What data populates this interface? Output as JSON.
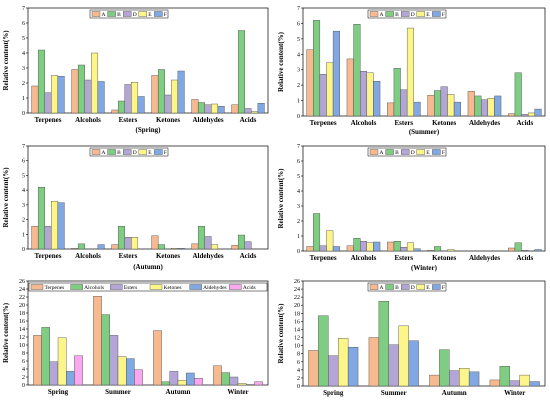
{
  "colors": {
    "A": "#f7b98f",
    "B": "#7fcd82",
    "D": "#b3a6d6",
    "E": "#fcf58a",
    "F": "#82a8e4",
    "Acids": "#f9a8f0"
  },
  "chart_data": [
    {
      "type": "bar",
      "subtitle": "(Spring)",
      "ylabel": "Relative content(%)",
      "ylim": [
        0,
        7
      ],
      "yticks": [
        0,
        1,
        2,
        3,
        4,
        5,
        6,
        7
      ],
      "categories": [
        "Terpenes",
        "Alcohols",
        "Esters",
        "Ketones",
        "Aldehydes",
        "Acids"
      ],
      "series": [
        {
          "name": "A",
          "values": [
            1.8,
            2.9,
            0.2,
            2.5,
            0.9,
            0.55
          ]
        },
        {
          "name": "B",
          "values": [
            4.2,
            3.2,
            0.8,
            2.9,
            0.7,
            5.5
          ]
        },
        {
          "name": "D",
          "values": [
            1.35,
            2.2,
            1.9,
            1.2,
            0.55,
            0.3
          ]
        },
        {
          "name": "E",
          "values": [
            2.5,
            4.0,
            2.05,
            2.2,
            0.6,
            0.1
          ]
        },
        {
          "name": "F",
          "values": [
            2.45,
            2.1,
            1.1,
            2.8,
            0.45,
            0.65
          ]
        }
      ]
    },
    {
      "type": "bar",
      "subtitle": "(Summer)",
      "ylabel": "Relative content(%)",
      "ylim": [
        0,
        7
      ],
      "yticks": [
        0,
        1,
        2,
        3,
        4,
        5,
        6,
        7
      ],
      "categories": [
        "Terpenes",
        "Alcohols",
        "Esters",
        "Ketones",
        "Aldehydes",
        "Acids"
      ],
      "series": [
        {
          "name": "A",
          "values": [
            4.3,
            3.7,
            0.85,
            1.35,
            1.6,
            0.15
          ]
        },
        {
          "name": "B",
          "values": [
            6.2,
            5.95,
            3.1,
            1.65,
            1.3,
            2.8
          ]
        },
        {
          "name": "D",
          "values": [
            2.7,
            2.9,
            1.7,
            1.9,
            1.05,
            0.1
          ]
        },
        {
          "name": "E",
          "values": [
            3.45,
            2.8,
            5.7,
            1.4,
            1.15,
            0.2
          ]
        },
        {
          "name": "F",
          "values": [
            5.5,
            2.25,
            0.9,
            0.9,
            1.3,
            0.45
          ]
        }
      ]
    },
    {
      "type": "bar",
      "subtitle": "(Autumn)",
      "ylabel": "Relative content(%)",
      "ylim": [
        0,
        7
      ],
      "yticks": [
        0,
        1,
        2,
        3,
        4,
        5,
        6,
        7
      ],
      "categories": [
        "Terpenes",
        "Alcohols",
        "Esters",
        "Ketones",
        "Aldehydes",
        "Acids"
      ],
      "series": [
        {
          "name": "A",
          "values": [
            1.55,
            0.05,
            0.3,
            0.9,
            0.35,
            0.25
          ]
        },
        {
          "name": "B",
          "values": [
            4.2,
            0.35,
            1.55,
            0.3,
            1.55,
            0.95
          ]
        },
        {
          "name": "D",
          "values": [
            1.55,
            0.0,
            0.8,
            0.0,
            0.85,
            0.5
          ]
        },
        {
          "name": "E",
          "values": [
            3.25,
            0.0,
            0.8,
            0.05,
            0.3,
            0.0
          ]
        },
        {
          "name": "F",
          "values": [
            3.15,
            0.3,
            0.0,
            0.05,
            0.0,
            0.0
          ]
        }
      ]
    },
    {
      "type": "bar",
      "subtitle": "(Winter)",
      "ylabel": "Relative content(%)",
      "ylim": [
        0,
        7
      ],
      "yticks": [
        0,
        1,
        2,
        3,
        4,
        5,
        6,
        7
      ],
      "categories": [
        "Terpenes",
        "Alcohols",
        "Esters",
        "Ketones",
        "Aldehydes",
        "Acids"
      ],
      "series": [
        {
          "name": "A",
          "values": [
            0.3,
            0.35,
            0.6,
            0.05,
            0.0,
            0.2
          ]
        },
        {
          "name": "B",
          "values": [
            2.5,
            0.85,
            0.65,
            0.3,
            0.0,
            0.55
          ]
        },
        {
          "name": "D",
          "values": [
            0.35,
            0.65,
            0.25,
            0.0,
            0.0,
            0.05
          ]
        },
        {
          "name": "E",
          "values": [
            1.35,
            0.55,
            0.55,
            0.1,
            0.0,
            0.0
          ]
        },
        {
          "name": "F",
          "values": [
            0.3,
            0.6,
            0.15,
            0.0,
            0.0,
            0.1
          ]
        }
      ]
    },
    {
      "type": "bar",
      "ylabel": "Relative content(%)",
      "ylim": [
        0,
        26
      ],
      "yticks": [
        0,
        2,
        4,
        6,
        8,
        10,
        12,
        14,
        16,
        18,
        20,
        22,
        24,
        26
      ],
      "categories": [
        "Spring",
        "Summer",
        "Autumn",
        "Winter"
      ],
      "legend_position": "top",
      "series": [
        {
          "name": "Terpenes",
          "color_key": "A",
          "values": [
            12.4,
            22.2,
            13.6,
            4.8
          ]
        },
        {
          "name": "Alcohols",
          "color_key": "B",
          "values": [
            14.4,
            17.6,
            0.8,
            3.1
          ]
        },
        {
          "name": "Esters",
          "color_key": "D",
          "values": [
            5.8,
            12.4,
            3.4,
            2.0
          ]
        },
        {
          "name": "Ketones",
          "color_key": "E",
          "values": [
            11.8,
            7.1,
            1.2,
            0.4
          ]
        },
        {
          "name": "Aldehydes",
          "color_key": "F",
          "values": [
            3.4,
            6.6,
            3.0,
            0.1
          ]
        },
        {
          "name": "Acids",
          "color_key": "Acids",
          "values": [
            7.3,
            3.8,
            1.7,
            0.8
          ]
        }
      ]
    },
    {
      "type": "bar",
      "ylabel": "Relative content(%)",
      "ylim": [
        0,
        26
      ],
      "yticks": [
        0,
        2,
        4,
        6,
        8,
        10,
        12,
        14,
        16,
        18,
        20,
        22,
        24,
        26
      ],
      "categories": [
        "Spring",
        "Summer",
        "Autumn",
        "Winter"
      ],
      "series": [
        {
          "name": "A",
          "values": [
            8.8,
            12.0,
            2.7,
            1.5
          ]
        },
        {
          "name": "B",
          "values": [
            17.4,
            21.0,
            9.0,
            4.9
          ]
        },
        {
          "name": "D",
          "values": [
            7.5,
            10.2,
            3.8,
            1.3
          ]
        },
        {
          "name": "E",
          "values": [
            11.8,
            14.9,
            4.4,
            2.7
          ]
        },
        {
          "name": "F",
          "values": [
            9.6,
            11.2,
            3.5,
            1.1
          ]
        }
      ]
    }
  ]
}
